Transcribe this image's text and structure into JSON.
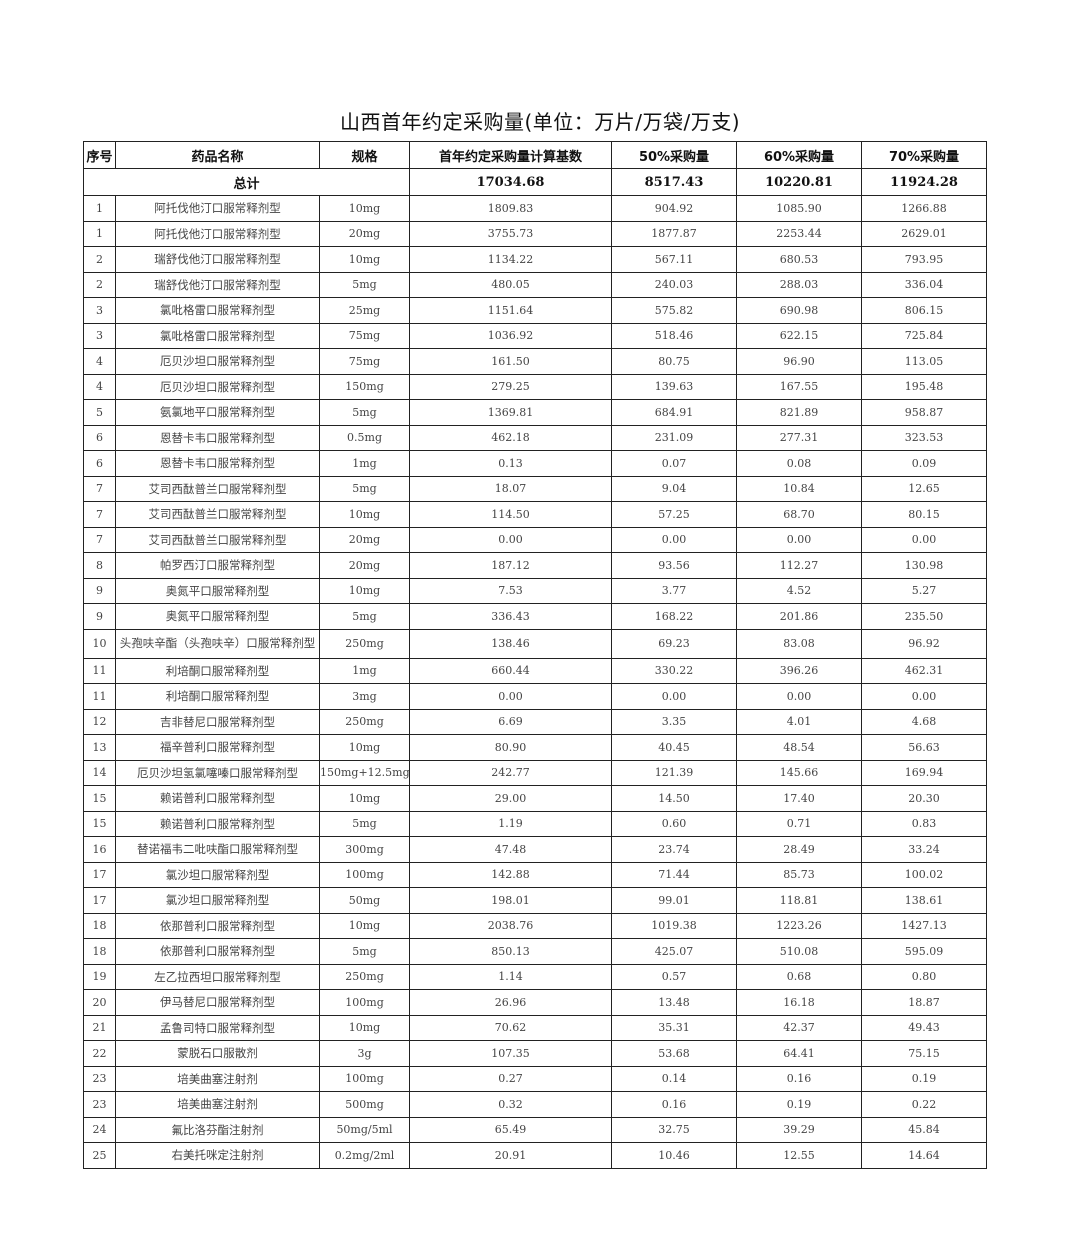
{
  "title": "山西首年约定采购量(单位：万片/万袋/万支)",
  "headers": [
    "序号",
    "药品名称",
    "规格",
    "首年约定采购量计算基数",
    "50%采购量",
    "60%采购量",
    "70%采购量"
  ],
  "total": {
    "label": "总计",
    "base": "17034.68",
    "p50": "8517.43",
    "p60": "10220.81",
    "p70": "11924.28"
  },
  "rows": [
    [
      "1",
      "阿托伐他汀口服常释剂型",
      "10mg",
      "1809.83",
      "904.92",
      "1085.90",
      "1266.88"
    ],
    [
      "1",
      "阿托伐他汀口服常释剂型",
      "20mg",
      "3755.73",
      "1877.87",
      "2253.44",
      "2629.01"
    ],
    [
      "2",
      "瑞舒伐他汀口服常释剂型",
      "10mg",
      "1134.22",
      "567.11",
      "680.53",
      "793.95"
    ],
    [
      "2",
      "瑞舒伐他汀口服常释剂型",
      "5mg",
      "480.05",
      "240.03",
      "288.03",
      "336.04"
    ],
    [
      "3",
      "氯吡格雷口服常释剂型",
      "25mg",
      "1151.64",
      "575.82",
      "690.98",
      "806.15"
    ],
    [
      "3",
      "氯吡格雷口服常释剂型",
      "75mg",
      "1036.92",
      "518.46",
      "622.15",
      "725.84"
    ],
    [
      "4",
      "厄贝沙坦口服常释剂型",
      "75mg",
      "161.50",
      "80.75",
      "96.90",
      "113.05"
    ],
    [
      "4",
      "厄贝沙坦口服常释剂型",
      "150mg",
      "279.25",
      "139.63",
      "167.55",
      "195.48"
    ],
    [
      "5",
      "氨氯地平口服常释剂型",
      "5mg",
      "1369.81",
      "684.91",
      "821.89",
      "958.87"
    ],
    [
      "6",
      "恩替卡韦口服常释剂型",
      "0.5mg",
      "462.18",
      "231.09",
      "277.31",
      "323.53"
    ],
    [
      "6",
      "恩替卡韦口服常释剂型",
      "1mg",
      "0.13",
      "0.07",
      "0.08",
      "0.09"
    ],
    [
      "7",
      "艾司西酞普兰口服常释剂型",
      "5mg",
      "18.07",
      "9.04",
      "10.84",
      "12.65"
    ],
    [
      "7",
      "艾司西酞普兰口服常释剂型",
      "10mg",
      "114.50",
      "57.25",
      "68.70",
      "80.15"
    ],
    [
      "7",
      "艾司西酞普兰口服常释剂型",
      "20mg",
      "0.00",
      "0.00",
      "0.00",
      "0.00"
    ],
    [
      "8",
      "帕罗西汀口服常释剂型",
      "20mg",
      "187.12",
      "93.56",
      "112.27",
      "130.98"
    ],
    [
      "9",
      "奥氮平口服常释剂型",
      "10mg",
      "7.53",
      "3.77",
      "4.52",
      "5.27"
    ],
    [
      "9",
      "奥氮平口服常释剂型",
      "5mg",
      "336.43",
      "168.22",
      "201.86",
      "235.50"
    ],
    [
      "10",
      "头孢呋辛酯（头孢呋辛）口服常释剂型",
      "250mg",
      "138.46",
      "69.23",
      "83.08",
      "96.92"
    ],
    [
      "11",
      "利培酮口服常释剂型",
      "1mg",
      "660.44",
      "330.22",
      "396.26",
      "462.31"
    ],
    [
      "11",
      "利培酮口服常释剂型",
      "3mg",
      "0.00",
      "0.00",
      "0.00",
      "0.00"
    ],
    [
      "12",
      "吉非替尼口服常释剂型",
      "250mg",
      "6.69",
      "3.35",
      "4.01",
      "4.68"
    ],
    [
      "13",
      "福辛普利口服常释剂型",
      "10mg",
      "80.90",
      "40.45",
      "48.54",
      "56.63"
    ],
    [
      "14",
      "厄贝沙坦氢氯噻嗪口服常释剂型",
      "150mg+12.5mg",
      "242.77",
      "121.39",
      "145.66",
      "169.94"
    ],
    [
      "15",
      "赖诺普利口服常释剂型",
      "10mg",
      "29.00",
      "14.50",
      "17.40",
      "20.30"
    ],
    [
      "15",
      "赖诺普利口服常释剂型",
      "5mg",
      "1.19",
      "0.60",
      "0.71",
      "0.83"
    ],
    [
      "16",
      "替诺福韦二吡呋酯口服常释剂型",
      "300mg",
      "47.48",
      "23.74",
      "28.49",
      "33.24"
    ],
    [
      "17",
      "氯沙坦口服常释剂型",
      "100mg",
      "142.88",
      "71.44",
      "85.73",
      "100.02"
    ],
    [
      "17",
      "氯沙坦口服常释剂型",
      "50mg",
      "198.01",
      "99.01",
      "118.81",
      "138.61"
    ],
    [
      "18",
      "依那普利口服常释剂型",
      "10mg",
      "2038.76",
      "1019.38",
      "1223.26",
      "1427.13"
    ],
    [
      "18",
      "依那普利口服常释剂型",
      "5mg",
      "850.13",
      "425.07",
      "510.08",
      "595.09"
    ],
    [
      "19",
      "左乙拉西坦口服常释剂型",
      "250mg",
      "1.14",
      "0.57",
      "0.68",
      "0.80"
    ],
    [
      "20",
      "伊马替尼口服常释剂型",
      "100mg",
      "26.96",
      "13.48",
      "16.18",
      "18.87"
    ],
    [
      "21",
      "孟鲁司特口服常释剂型",
      "10mg",
      "70.62",
      "35.31",
      "42.37",
      "49.43"
    ],
    [
      "22",
      "蒙脱石口服散剂",
      "3g",
      "107.35",
      "53.68",
      "64.41",
      "75.15"
    ],
    [
      "23",
      "培美曲塞注射剂",
      "100mg",
      "0.27",
      "0.14",
      "0.16",
      "0.19"
    ],
    [
      "23",
      "培美曲塞注射剂",
      "500mg",
      "0.32",
      "0.16",
      "0.19",
      "0.22"
    ],
    [
      "24",
      "氟比洛芬酯注射剂",
      "50mg/5ml",
      "65.49",
      "32.75",
      "39.29",
      "45.84"
    ],
    [
      "25",
      "右美托咪定注射剂",
      "0.2mg/2ml",
      "20.91",
      "10.46",
      "12.55",
      "14.64"
    ]
  ]
}
